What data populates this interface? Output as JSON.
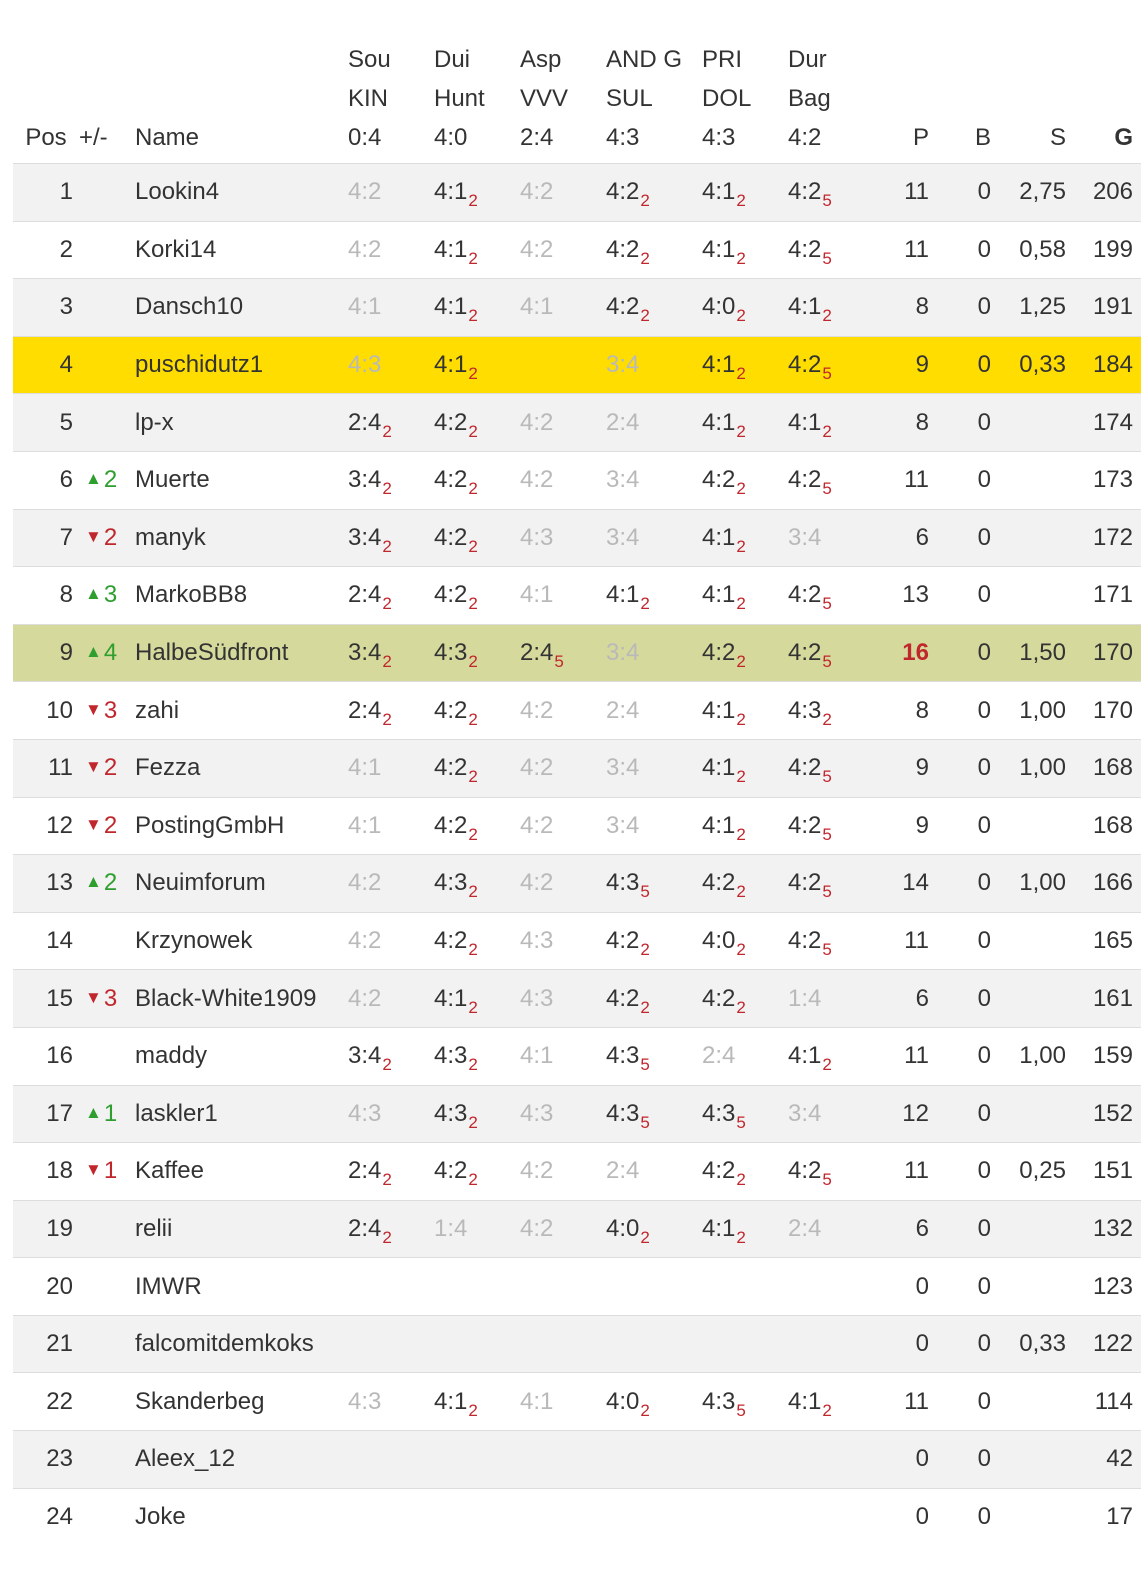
{
  "header": {
    "pos": "Pos",
    "change": "+/-",
    "name": "Name",
    "matches": [
      {
        "lines": [
          "Sou",
          "KIN",
          "0:4"
        ]
      },
      {
        "lines": [
          "Dui",
          "Hunt",
          "4:0"
        ]
      },
      {
        "lines": [
          "Asp",
          "VVV",
          "2:4"
        ]
      },
      {
        "lines": [
          "AND G",
          "SUL",
          "4:3"
        ]
      },
      {
        "lines": [
          "PRI",
          "DOL",
          "4:3"
        ]
      },
      {
        "lines": [
          "Dur",
          "Bag",
          "4:2"
        ]
      }
    ],
    "p": "P",
    "b": "B",
    "s": "S",
    "g": "G"
  },
  "colors": {
    "own_row": "#ffdd00",
    "highlight_row": "#d6d99c",
    "up": "#2e9e2e",
    "down": "#c0272d",
    "points": "#c0272d",
    "grey_tip": "#b9b9b9"
  },
  "rows": [
    {
      "pos": "1",
      "dir": "",
      "chg": "",
      "name": "Lookin4",
      "tips": [
        {
          "t": "4:2",
          "g": true
        },
        {
          "t": "4:1",
          "p": "2"
        },
        {
          "t": "4:2",
          "g": true
        },
        {
          "t": "4:2",
          "p": "2"
        },
        {
          "t": "4:1",
          "p": "2"
        },
        {
          "t": "4:2",
          "p": "5"
        }
      ],
      "p": "11",
      "b": "0",
      "s": "2,75",
      "g": "206"
    },
    {
      "pos": "2",
      "dir": "",
      "chg": "",
      "name": "Korki14",
      "tips": [
        {
          "t": "4:2",
          "g": true
        },
        {
          "t": "4:1",
          "p": "2"
        },
        {
          "t": "4:2",
          "g": true
        },
        {
          "t": "4:2",
          "p": "2"
        },
        {
          "t": "4:1",
          "p": "2"
        },
        {
          "t": "4:2",
          "p": "5"
        }
      ],
      "p": "11",
      "b": "0",
      "s": "0,58",
      "g": "199"
    },
    {
      "pos": "3",
      "dir": "",
      "chg": "",
      "name": "Dansch10",
      "tips": [
        {
          "t": "4:1",
          "g": true
        },
        {
          "t": "4:1",
          "p": "2"
        },
        {
          "t": "4:1",
          "g": true
        },
        {
          "t": "4:2",
          "p": "2"
        },
        {
          "t": "4:0",
          "p": "2"
        },
        {
          "t": "4:1",
          "p": "2"
        }
      ],
      "p": "8",
      "b": "0",
      "s": "1,25",
      "g": "191"
    },
    {
      "pos": "4",
      "dir": "",
      "chg": "",
      "name": "puschidutz1",
      "tips": [
        {
          "t": "4:3",
          "g": true
        },
        {
          "t": "4:1",
          "p": "2"
        },
        {
          "t": ""
        },
        {
          "t": "3:4",
          "g": true
        },
        {
          "t": "4:1",
          "p": "2"
        },
        {
          "t": "4:2",
          "p": "5"
        }
      ],
      "p": "9",
      "b": "0",
      "s": "0,33",
      "g": "184",
      "style": "me"
    },
    {
      "pos": "5",
      "dir": "",
      "chg": "",
      "name": "lp-x",
      "tips": [
        {
          "t": "2:4",
          "p": "2"
        },
        {
          "t": "4:2",
          "p": "2"
        },
        {
          "t": "4:2",
          "g": true
        },
        {
          "t": "2:4",
          "g": true
        },
        {
          "t": "4:1",
          "p": "2"
        },
        {
          "t": "4:1",
          "p": "2"
        }
      ],
      "p": "8",
      "b": "0",
      "s": "",
      "g": "174"
    },
    {
      "pos": "6",
      "dir": "up",
      "chg": "2",
      "name": "Muerte",
      "tips": [
        {
          "t": "3:4",
          "p": "2"
        },
        {
          "t": "4:2",
          "p": "2"
        },
        {
          "t": "4:2",
          "g": true
        },
        {
          "t": "3:4",
          "g": true
        },
        {
          "t": "4:2",
          "p": "2"
        },
        {
          "t": "4:2",
          "p": "5"
        }
      ],
      "p": "11",
      "b": "0",
      "s": "",
      "g": "173"
    },
    {
      "pos": "7",
      "dir": "down",
      "chg": "2",
      "name": "manyk",
      "tips": [
        {
          "t": "3:4",
          "p": "2"
        },
        {
          "t": "4:2",
          "p": "2"
        },
        {
          "t": "4:3",
          "g": true
        },
        {
          "t": "3:4",
          "g": true
        },
        {
          "t": "4:1",
          "p": "2"
        },
        {
          "t": "3:4",
          "g": true
        }
      ],
      "p": "6",
      "b": "0",
      "s": "",
      "g": "172"
    },
    {
      "pos": "8",
      "dir": "up",
      "chg": "3",
      "name": "MarkoBB8",
      "tips": [
        {
          "t": "2:4",
          "p": "2"
        },
        {
          "t": "4:2",
          "p": "2"
        },
        {
          "t": "4:1",
          "g": true
        },
        {
          "t": "4:1",
          "p": "2"
        },
        {
          "t": "4:1",
          "p": "2"
        },
        {
          "t": "4:2",
          "p": "5"
        }
      ],
      "p": "13",
      "b": "0",
      "s": "",
      "g": "171"
    },
    {
      "pos": "9",
      "dir": "up",
      "chg": "4",
      "name": "HalbeSüdfront",
      "tips": [
        {
          "t": "3:4",
          "p": "2"
        },
        {
          "t": "4:3",
          "p": "2"
        },
        {
          "t": "2:4",
          "p": "5"
        },
        {
          "t": "3:4",
          "g": true
        },
        {
          "t": "4:2",
          "p": "2"
        },
        {
          "t": "4:2",
          "p": "5"
        }
      ],
      "p": "16",
      "pRed": true,
      "b": "0",
      "s": "1,50",
      "g": "170",
      "style": "hi"
    },
    {
      "pos": "10",
      "dir": "down",
      "chg": "3",
      "name": "zahi",
      "tips": [
        {
          "t": "2:4",
          "p": "2"
        },
        {
          "t": "4:2",
          "p": "2"
        },
        {
          "t": "4:2",
          "g": true
        },
        {
          "t": "2:4",
          "g": true
        },
        {
          "t": "4:1",
          "p": "2"
        },
        {
          "t": "4:3",
          "p": "2"
        }
      ],
      "p": "8",
      "b": "0",
      "s": "1,00",
      "g": "170"
    },
    {
      "pos": "11",
      "dir": "down",
      "chg": "2",
      "name": "Fezza",
      "tips": [
        {
          "t": "4:1",
          "g": true
        },
        {
          "t": "4:2",
          "p": "2"
        },
        {
          "t": "4:2",
          "g": true
        },
        {
          "t": "3:4",
          "g": true
        },
        {
          "t": "4:1",
          "p": "2"
        },
        {
          "t": "4:2",
          "p": "5"
        }
      ],
      "p": "9",
      "b": "0",
      "s": "1,00",
      "g": "168"
    },
    {
      "pos": "12",
      "dir": "down",
      "chg": "2",
      "name": "PostingGmbH",
      "tips": [
        {
          "t": "4:1",
          "g": true
        },
        {
          "t": "4:2",
          "p": "2"
        },
        {
          "t": "4:2",
          "g": true
        },
        {
          "t": "3:4",
          "g": true
        },
        {
          "t": "4:1",
          "p": "2"
        },
        {
          "t": "4:2",
          "p": "5"
        }
      ],
      "p": "9",
      "b": "0",
      "s": "",
      "g": "168"
    },
    {
      "pos": "13",
      "dir": "up",
      "chg": "2",
      "name": "Neuimforum",
      "tips": [
        {
          "t": "4:2",
          "g": true
        },
        {
          "t": "4:3",
          "p": "2"
        },
        {
          "t": "4:2",
          "g": true
        },
        {
          "t": "4:3",
          "p": "5"
        },
        {
          "t": "4:2",
          "p": "2"
        },
        {
          "t": "4:2",
          "p": "5"
        }
      ],
      "p": "14",
      "b": "0",
      "s": "1,00",
      "g": "166"
    },
    {
      "pos": "14",
      "dir": "",
      "chg": "",
      "name": "Krzynowek",
      "tips": [
        {
          "t": "4:2",
          "g": true
        },
        {
          "t": "4:2",
          "p": "2"
        },
        {
          "t": "4:3",
          "g": true
        },
        {
          "t": "4:2",
          "p": "2"
        },
        {
          "t": "4:0",
          "p": "2"
        },
        {
          "t": "4:2",
          "p": "5"
        }
      ],
      "p": "11",
      "b": "0",
      "s": "",
      "g": "165"
    },
    {
      "pos": "15",
      "dir": "down",
      "chg": "3",
      "name": "Black-White1909",
      "tips": [
        {
          "t": "4:2",
          "g": true
        },
        {
          "t": "4:1",
          "p": "2"
        },
        {
          "t": "4:3",
          "g": true
        },
        {
          "t": "4:2",
          "p": "2"
        },
        {
          "t": "4:2",
          "p": "2"
        },
        {
          "t": "1:4",
          "g": true
        }
      ],
      "p": "6",
      "b": "0",
      "s": "",
      "g": "161"
    },
    {
      "pos": "16",
      "dir": "",
      "chg": "",
      "name": "maddy",
      "tips": [
        {
          "t": "3:4",
          "p": "2"
        },
        {
          "t": "4:3",
          "p": "2"
        },
        {
          "t": "4:1",
          "g": true
        },
        {
          "t": "4:3",
          "p": "5"
        },
        {
          "t": "2:4",
          "g": true
        },
        {
          "t": "4:1",
          "p": "2"
        }
      ],
      "p": "11",
      "b": "0",
      "s": "1,00",
      "g": "159"
    },
    {
      "pos": "17",
      "dir": "up",
      "chg": "1",
      "name": "laskler1",
      "tips": [
        {
          "t": "4:3",
          "g": true
        },
        {
          "t": "4:3",
          "p": "2"
        },
        {
          "t": "4:3",
          "g": true
        },
        {
          "t": "4:3",
          "p": "5"
        },
        {
          "t": "4:3",
          "p": "5"
        },
        {
          "t": "3:4",
          "g": true
        }
      ],
      "p": "12",
      "b": "0",
      "s": "",
      "g": "152"
    },
    {
      "pos": "18",
      "dir": "down",
      "chg": "1",
      "name": "Kaffee",
      "tips": [
        {
          "t": "2:4",
          "p": "2"
        },
        {
          "t": "4:2",
          "p": "2"
        },
        {
          "t": "4:2",
          "g": true
        },
        {
          "t": "2:4",
          "g": true
        },
        {
          "t": "4:2",
          "p": "2"
        },
        {
          "t": "4:2",
          "p": "5"
        }
      ],
      "p": "11",
      "b": "0",
      "s": "0,25",
      "g": "151"
    },
    {
      "pos": "19",
      "dir": "",
      "chg": "",
      "name": "relii",
      "tips": [
        {
          "t": "2:4",
          "p": "2"
        },
        {
          "t": "1:4",
          "g": true
        },
        {
          "t": "4:2",
          "g": true
        },
        {
          "t": "4:0",
          "p": "2"
        },
        {
          "t": "4:1",
          "p": "2"
        },
        {
          "t": "2:4",
          "g": true
        }
      ],
      "p": "6",
      "b": "0",
      "s": "",
      "g": "132"
    },
    {
      "pos": "20",
      "dir": "",
      "chg": "",
      "name": "IMWR",
      "tips": [
        {
          "t": ""
        },
        {
          "t": ""
        },
        {
          "t": ""
        },
        {
          "t": ""
        },
        {
          "t": ""
        },
        {
          "t": ""
        }
      ],
      "p": "0",
      "b": "0",
      "s": "",
      "g": "123"
    },
    {
      "pos": "21",
      "dir": "",
      "chg": "",
      "name": "falcomitdemkoks",
      "tips": [
        {
          "t": ""
        },
        {
          "t": ""
        },
        {
          "t": ""
        },
        {
          "t": ""
        },
        {
          "t": ""
        },
        {
          "t": ""
        }
      ],
      "p": "0",
      "b": "0",
      "s": "0,33",
      "g": "122"
    },
    {
      "pos": "22",
      "dir": "",
      "chg": "",
      "name": "Skanderbeg",
      "tips": [
        {
          "t": "4:3",
          "g": true
        },
        {
          "t": "4:1",
          "p": "2"
        },
        {
          "t": "4:1",
          "g": true
        },
        {
          "t": "4:0",
          "p": "2"
        },
        {
          "t": "4:3",
          "p": "5"
        },
        {
          "t": "4:1",
          "p": "2"
        }
      ],
      "p": "11",
      "b": "0",
      "s": "",
      "g": "114"
    },
    {
      "pos": "23",
      "dir": "",
      "chg": "",
      "name": "Aleex_12",
      "tips": [
        {
          "t": ""
        },
        {
          "t": ""
        },
        {
          "t": ""
        },
        {
          "t": ""
        },
        {
          "t": ""
        },
        {
          "t": ""
        }
      ],
      "p": "0",
      "b": "0",
      "s": "",
      "g": "42"
    },
    {
      "pos": "24",
      "dir": "",
      "chg": "",
      "name": "Joke",
      "tips": [
        {
          "t": ""
        },
        {
          "t": ""
        },
        {
          "t": ""
        },
        {
          "t": ""
        },
        {
          "t": ""
        },
        {
          "t": ""
        }
      ],
      "p": "0",
      "b": "0",
      "s": "",
      "g": "17"
    }
  ]
}
